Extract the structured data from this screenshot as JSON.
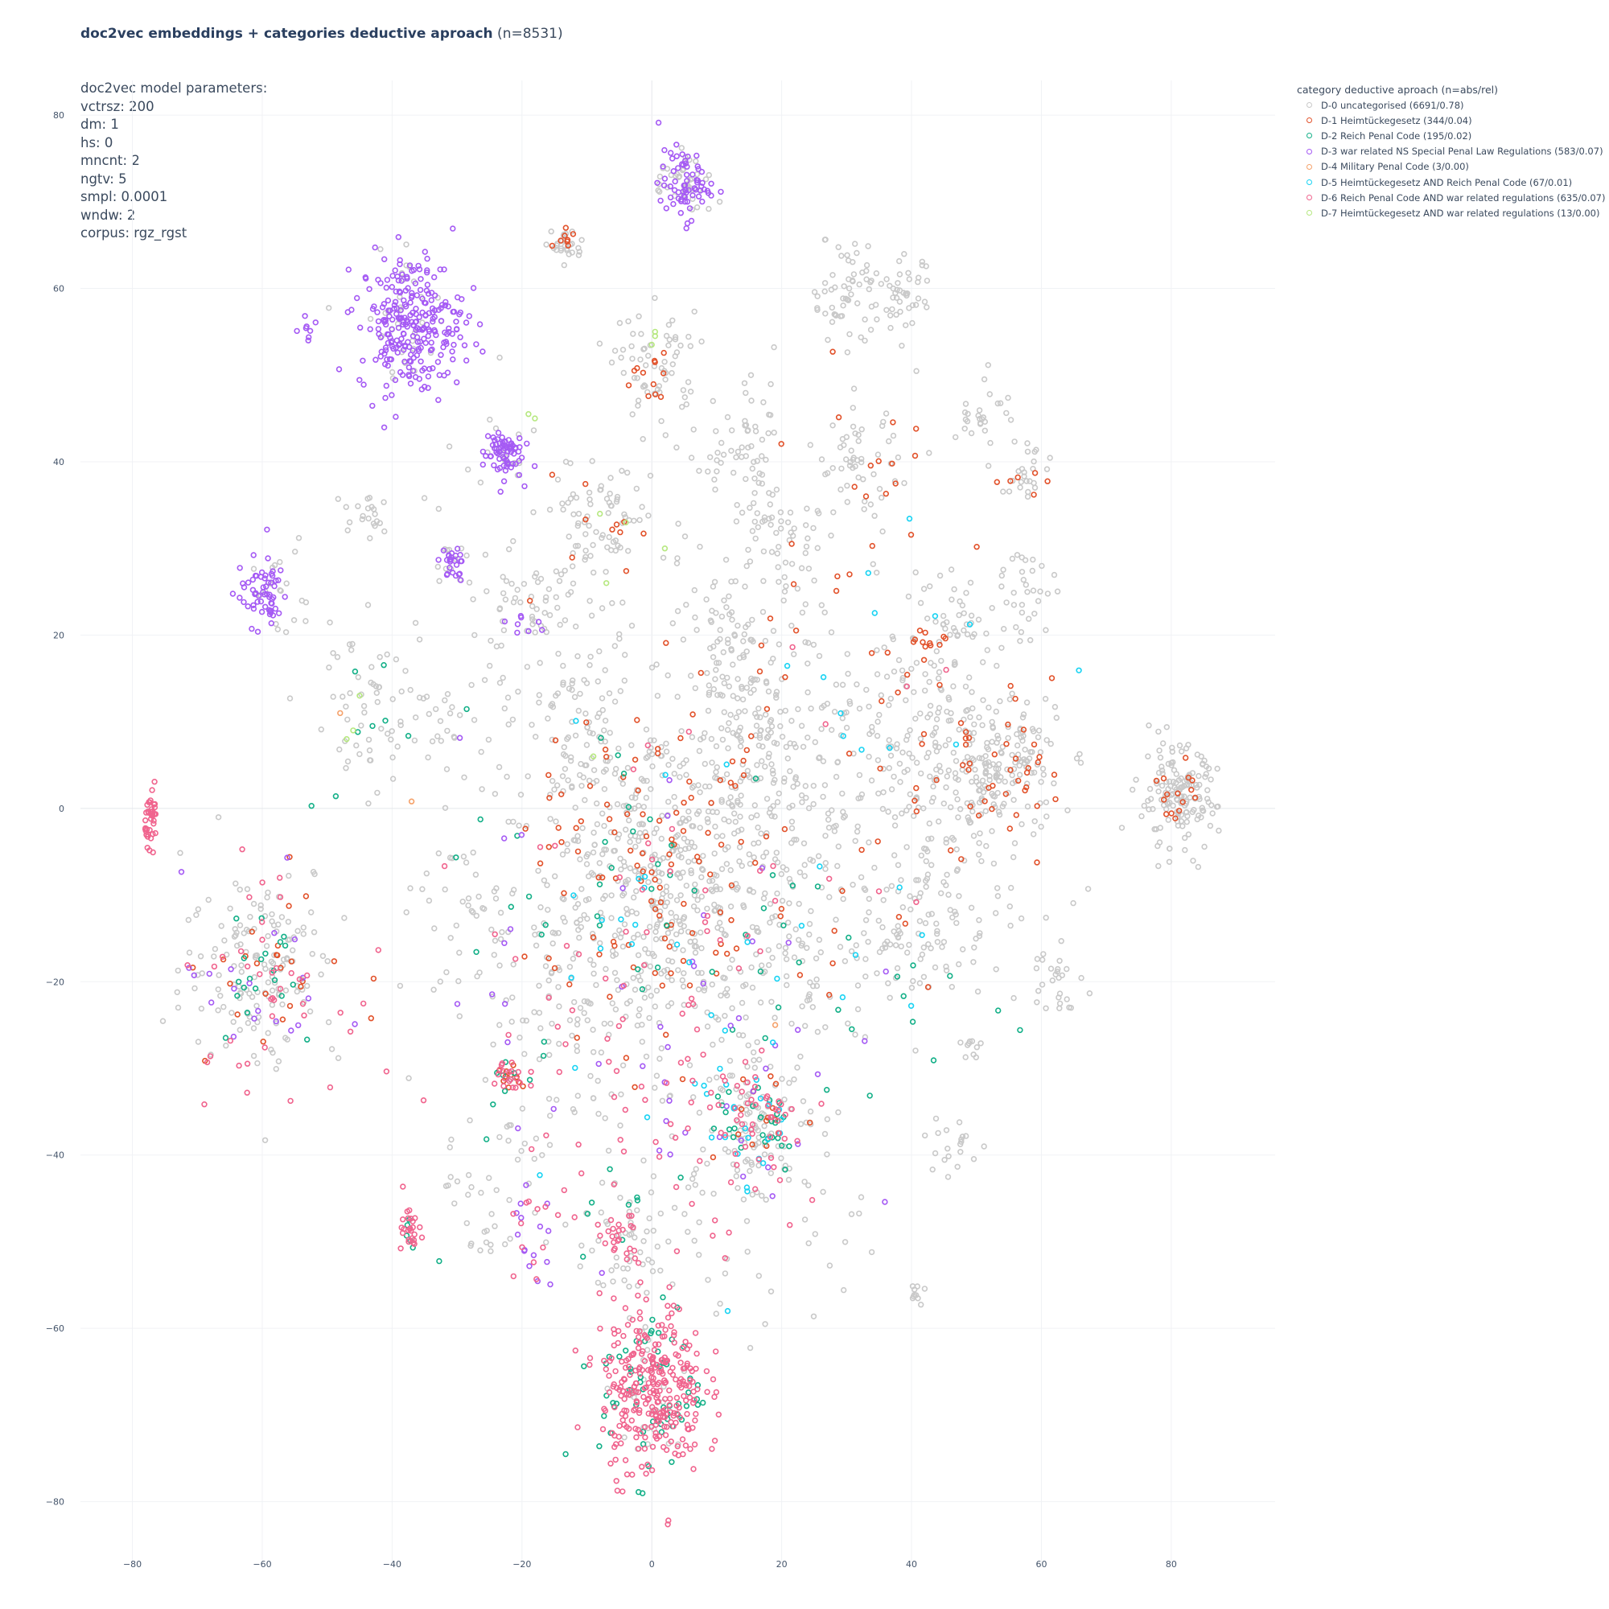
{
  "title": {
    "bold": "doc2vec embeddings + categories deductive aproach",
    "suffix": " (n=8531)"
  },
  "params": {
    "lines": [
      "doc2vec model parameters:",
      "vctrsz: 200",
      "dm: 1",
      "hs: 0",
      "mncnt: 2",
      "ngtv: 5",
      "smpl: 0.0001",
      "wndw: 2",
      "corpus: rgz_rgst"
    ]
  },
  "legend": {
    "title": "category deductive aproach (n=abs/rel)",
    "placement": "top-right outside plot"
  },
  "chart_data": {
    "type": "scatter",
    "marker": "open circle",
    "xlim": [
      -88,
      96
    ],
    "ylim": [
      -87,
      84
    ],
    "grid": true,
    "x_ticks": [
      -80,
      -60,
      -40,
      -20,
      0,
      20,
      40,
      60,
      80
    ],
    "y_ticks": [
      80,
      60,
      40,
      20,
      0,
      -20,
      -40,
      -60,
      -80
    ],
    "x_tick_labels": [
      "−80",
      "−60",
      "−40",
      "−20",
      "0",
      "20",
      "40",
      "60",
      "80"
    ],
    "y_tick_labels": [
      "80",
      "60",
      "40",
      "20",
      "0",
      "−20",
      "−40",
      "−60",
      "−80"
    ],
    "series": [
      {
        "name": "D-0 uncategorised (6691/0.78)",
        "color": "#c9c9c9",
        "clusters": [
          {
            "cx": 1,
            "cy": -10,
            "sx": 9,
            "sy": 9,
            "n": 420
          },
          {
            "cx": 53,
            "cy": 5,
            "sx": 5,
            "sy": 4,
            "n": 160
          },
          {
            "cx": 81,
            "cy": 1,
            "sx": 3,
            "sy": 3,
            "n": 150
          },
          {
            "cx": 16,
            "cy": -36,
            "sx": 4,
            "sy": 3.5,
            "n": 90
          },
          {
            "cx": -60,
            "cy": -18,
            "sx": 6,
            "sy": 6,
            "n": 150
          },
          {
            "cx": 0,
            "cy": -67,
            "sx": 4,
            "sy": 5,
            "n": 30
          },
          {
            "cx": -13,
            "cy": 65,
            "sx": 1.2,
            "sy": 1,
            "n": 25
          },
          {
            "cx": 5,
            "cy": 72,
            "sx": 2.5,
            "sy": 2,
            "n": 40
          },
          {
            "cx": 1,
            "cy": 51,
            "sx": 3,
            "sy": 3,
            "n": 60
          },
          {
            "cx": 30,
            "cy": 60,
            "sx": 3,
            "sy": 3,
            "n": 60
          },
          {
            "cx": 39,
            "cy": 59,
            "sx": 2,
            "sy": 2,
            "n": 40
          },
          {
            "cx": 32,
            "cy": 40,
            "sx": 3,
            "sy": 3,
            "n": 50
          },
          {
            "cx": 14,
            "cy": 40,
            "sx": 4,
            "sy": 4,
            "n": 60
          },
          {
            "cx": -9,
            "cy": 33,
            "sx": 4,
            "sy": 4,
            "n": 60
          },
          {
            "cx": -20,
            "cy": 22,
            "sx": 3,
            "sy": 3,
            "n": 40
          },
          {
            "cx": 12,
            "cy": 19,
            "sx": 3,
            "sy": 3,
            "n": 50
          },
          {
            "cx": 48,
            "cy": 21,
            "sx": 4,
            "sy": 3,
            "n": 40
          },
          {
            "cx": 58,
            "cy": 26,
            "sx": 2,
            "sy": 3,
            "n": 30
          },
          {
            "cx": 58,
            "cy": 39,
            "sx": 2,
            "sy": 2,
            "n": 25
          },
          {
            "cx": 51,
            "cy": 46,
            "sx": 2,
            "sy": 2,
            "n": 25
          },
          {
            "cx": 20,
            "cy": 31,
            "sx": 3,
            "sy": 3,
            "n": 40
          },
          {
            "cx": -10,
            "cy": 8,
            "sx": 4,
            "sy": 4,
            "n": 60
          },
          {
            "cx": 16,
            "cy": 9,
            "sx": 4,
            "sy": 4,
            "n": 60
          },
          {
            "cx": 40,
            "cy": 10,
            "sx": 6,
            "sy": 6,
            "n": 80
          },
          {
            "cx": -44,
            "cy": 12,
            "sx": 5,
            "sy": 4,
            "n": 50
          },
          {
            "cx": -43,
            "cy": 34,
            "sx": 1.5,
            "sy": 1.5,
            "n": 20
          },
          {
            "cx": 62,
            "cy": -19,
            "sx": 2,
            "sy": 2,
            "n": 25
          },
          {
            "cx": 40,
            "cy": -14,
            "sx": 4,
            "sy": 4,
            "n": 50
          },
          {
            "cx": 46,
            "cy": -39,
            "sx": 2,
            "sy": 2,
            "n": 20
          },
          {
            "cx": 40,
            "cy": -56,
            "sx": 1,
            "sy": 1,
            "n": 10
          },
          {
            "cx": 49,
            "cy": -28,
            "sx": 1,
            "sy": 1,
            "n": 10
          },
          {
            "cx": -5,
            "cy": -50,
            "sx": 4,
            "sy": 3,
            "n": 30
          },
          {
            "cx": 25,
            "cy": -20,
            "sx": 6,
            "sy": 6,
            "n": 60
          },
          {
            "cx": -25,
            "cy": -12,
            "sx": 6,
            "sy": 6,
            "n": 60
          },
          {
            "cx": 20,
            "cy": 0,
            "sx": 14,
            "sy": 10,
            "n": 250
          },
          {
            "cx": -15,
            "cy": -28,
            "sx": 8,
            "sy": 8,
            "n": 80
          },
          {
            "cx": 45,
            "cy": -5,
            "sx": 10,
            "sy": 8,
            "n": 120
          },
          {
            "cx": 0,
            "cy": 20,
            "sx": 20,
            "sy": 14,
            "n": 220
          },
          {
            "cx": 10,
            "cy": -45,
            "sx": 12,
            "sy": 8,
            "n": 80
          },
          {
            "cx": -25,
            "cy": -45,
            "sx": 4,
            "sy": 4,
            "n": 30
          },
          {
            "cx": -31,
            "cy": 10,
            "sx": 2,
            "sy": 2,
            "n": 15
          },
          {
            "cx": -38,
            "cy": 57,
            "sx": 4,
            "sy": 4,
            "n": 30
          },
          {
            "cx": -22,
            "cy": 41,
            "sx": 2,
            "sy": 2,
            "n": 15
          },
          {
            "cx": -58,
            "cy": 25,
            "sx": 3,
            "sy": 3,
            "n": 20
          },
          {
            "cx": -31,
            "cy": 28,
            "sx": 1.5,
            "sy": 1.5,
            "n": 12
          }
        ]
      },
      {
        "name": "D-1 Heimtückegesetz (344/0.04)",
        "color": "#e2522b",
        "clusters": [
          {
            "cx": 0,
            "cy": -8,
            "sx": 9,
            "sy": 10,
            "n": 90
          },
          {
            "cx": 53,
            "cy": 4,
            "sx": 6,
            "sy": 5,
            "n": 40
          },
          {
            "cx": 81,
            "cy": 1,
            "sx": 2,
            "sy": 2,
            "n": 15
          },
          {
            "cx": -22,
            "cy": -31,
            "sx": 1,
            "sy": 1,
            "n": 10
          },
          {
            "cx": 0,
            "cy": 50,
            "sx": 2,
            "sy": 2,
            "n": 12
          },
          {
            "cx": -13,
            "cy": 65,
            "sx": 1,
            "sy": 1,
            "n": 8
          },
          {
            "cx": 41,
            "cy": 18,
            "sx": 2,
            "sy": 1.5,
            "n": 12
          },
          {
            "cx": -60,
            "cy": -18,
            "sx": 6,
            "sy": 6,
            "n": 25
          },
          {
            "cx": 20,
            "cy": 0,
            "sx": 15,
            "sy": 15,
            "n": 60
          },
          {
            "cx": 16,
            "cy": -36,
            "sx": 4,
            "sy": 3,
            "n": 15
          },
          {
            "cx": 35,
            "cy": 40,
            "sx": 8,
            "sy": 6,
            "n": 15
          },
          {
            "cx": 58,
            "cy": 38,
            "sx": 2,
            "sy": 2,
            "n": 6
          },
          {
            "cx": -8,
            "cy": 33,
            "sx": 3,
            "sy": 3,
            "n": 10
          }
        ]
      },
      {
        "name": "D-2 Reich Penal Code (195/0.02)",
        "color": "#14b088",
        "clusters": [
          {
            "cx": 0,
            "cy": -67,
            "sx": 4,
            "sy": 5,
            "n": 60
          },
          {
            "cx": 16,
            "cy": -36,
            "sx": 4,
            "sy": 3,
            "n": 25
          },
          {
            "cx": -60,
            "cy": -18,
            "sx": 5,
            "sy": 5,
            "n": 20
          },
          {
            "cx": 0,
            "cy": -12,
            "sx": 15,
            "sy": 12,
            "n": 40
          },
          {
            "cx": -22,
            "cy": -31,
            "sx": 1.5,
            "sy": 1.5,
            "n": 8
          },
          {
            "cx": -37,
            "cy": -49,
            "sx": 1.5,
            "sy": 1.5,
            "n": 6
          },
          {
            "cx": -5,
            "cy": -47,
            "sx": 3,
            "sy": 3,
            "n": 8
          },
          {
            "cx": 30,
            "cy": -20,
            "sx": 15,
            "sy": 8,
            "n": 20
          },
          {
            "cx": -42,
            "cy": 8,
            "sx": 6,
            "sy": 5,
            "n": 8
          }
        ]
      },
      {
        "name": "D-3 war related NS Special Penal Law Regulations (583/0.07)",
        "color": "#a55af4",
        "clusters": [
          {
            "cx": -37,
            "cy": 56,
            "sx": 4,
            "sy": 4,
            "n": 260
          },
          {
            "cx": 5,
            "cy": 72,
            "sx": 2,
            "sy": 2,
            "n": 70
          },
          {
            "cx": -23,
            "cy": 41,
            "sx": 1.5,
            "sy": 1.5,
            "n": 70
          },
          {
            "cx": -60,
            "cy": 25,
            "sx": 2,
            "sy": 2,
            "n": 60
          },
          {
            "cx": -31,
            "cy": 28,
            "sx": 1,
            "sy": 1,
            "n": 25
          },
          {
            "cx": -53,
            "cy": 55,
            "sx": 1,
            "sy": 1,
            "n": 8
          },
          {
            "cx": -60,
            "cy": -20,
            "sx": 6,
            "sy": 6,
            "n": 20
          },
          {
            "cx": 0,
            "cy": -20,
            "sx": 15,
            "sy": 15,
            "n": 40
          },
          {
            "cx": -20,
            "cy": 22,
            "sx": 2,
            "sy": 2,
            "n": 8
          },
          {
            "cx": -19,
            "cy": -50,
            "sx": 2,
            "sy": 3,
            "n": 15
          },
          {
            "cx": 16,
            "cy": -38,
            "sx": 6,
            "sy": 4,
            "n": 10
          }
        ]
      },
      {
        "name": "D-4 Military Penal Code (3/0.00)",
        "color": "#f5a26b",
        "points": [
          [
            -37,
            0.8
          ],
          [
            19,
            -25
          ],
          [
            -48,
            11
          ]
        ]
      },
      {
        "name": "D-5 Heimtückegesetz AND Reich Penal Code (67/0.01)",
        "color": "#19d3f3",
        "clusters": [
          {
            "cx": 16,
            "cy": -36,
            "sx": 4,
            "sy": 4,
            "n": 20
          },
          {
            "cx": 10,
            "cy": -15,
            "sx": 18,
            "sy": 14,
            "n": 35
          },
          {
            "cx": 40,
            "cy": 18,
            "sx": 10,
            "sy": 8,
            "n": 12
          }
        ]
      },
      {
        "name": "D-6 Reich Penal Code AND war related regulations (635/0.07)",
        "color": "#f0648e",
        "clusters": [
          {
            "cx": 0,
            "cy": -67,
            "sx": 4,
            "sy": 5,
            "n": 300
          },
          {
            "cx": -77,
            "cy": -1,
            "sx": 0.5,
            "sy": 1.5,
            "n": 40
          },
          {
            "cx": -37,
            "cy": -49,
            "sx": 1,
            "sy": 1,
            "n": 25
          },
          {
            "cx": -5,
            "cy": -50,
            "sx": 2,
            "sy": 2,
            "n": 25
          },
          {
            "cx": 16,
            "cy": -37,
            "sx": 4,
            "sy": 3,
            "n": 40
          },
          {
            "cx": -22,
            "cy": -31,
            "sx": 1.5,
            "sy": 1.5,
            "n": 20
          },
          {
            "cx": 0,
            "cy": -30,
            "sx": 14,
            "sy": 12,
            "n": 80
          },
          {
            "cx": -60,
            "cy": -20,
            "sx": 6,
            "sy": 6,
            "n": 40
          },
          {
            "cx": -19,
            "cy": -51,
            "sx": 2,
            "sy": 3,
            "n": 10
          },
          {
            "cx": 10,
            "cy": -5,
            "sx": 15,
            "sy": 10,
            "n": 25
          }
        ]
      },
      {
        "name": "D-7 Heimtückegesetz AND war related regulations (13/0.00)",
        "color": "#b6e880",
        "points": [
          [
            0.5,
            54.5
          ],
          [
            0,
            53.5
          ],
          [
            -7,
            26
          ],
          [
            -4,
            33
          ],
          [
            -19,
            45.5
          ],
          [
            -45,
            13
          ],
          [
            -46,
            9
          ],
          [
            -8,
            34
          ],
          [
            2,
            30
          ],
          [
            -9,
            6
          ],
          [
            0.5,
            55
          ],
          [
            -18,
            45
          ],
          [
            -47,
            8
          ]
        ]
      }
    ]
  }
}
